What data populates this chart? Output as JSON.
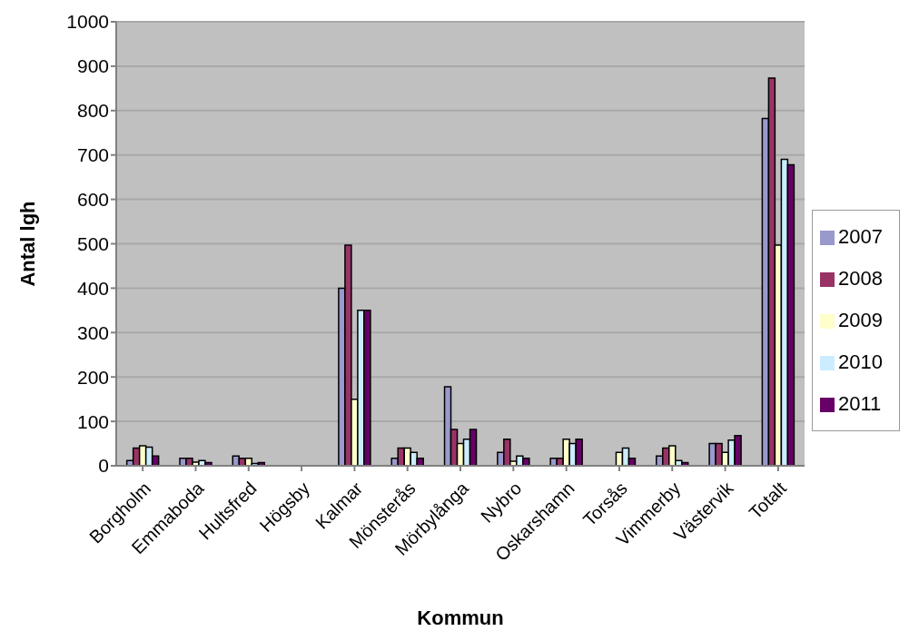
{
  "chart_data": {
    "type": "bar",
    "xlabel": "Kommun",
    "ylabel": "Antal lgh",
    "categories": [
      "Borgholm",
      "Emmaboda",
      "Hultsfred",
      "Högsby",
      "Kalmar",
      "Mönsterås",
      "Mörbylånga",
      "Nybro",
      "Oskarshamn",
      "Torsås",
      "Vimmerby",
      "Västervik",
      "Totalt"
    ],
    "series": [
      {
        "name": "2007",
        "color": "#9999cc",
        "values": [
          12,
          17,
          22,
          null,
          400,
          17,
          178,
          30,
          17,
          null,
          22,
          50,
          782
        ]
      },
      {
        "name": "2008",
        "color": "#993366",
        "values": [
          40,
          17,
          17,
          null,
          497,
          40,
          82,
          60,
          17,
          null,
          40,
          50,
          873
        ]
      },
      {
        "name": "2009",
        "color": "#ffffcc",
        "values": [
          45,
          8,
          17,
          null,
          150,
          40,
          50,
          10,
          60,
          30,
          45,
          30,
          497
        ]
      },
      {
        "name": "2010",
        "color": "#ccecff",
        "values": [
          42,
          12,
          5,
          null,
          350,
          30,
          60,
          22,
          50,
          40,
          12,
          58,
          690
        ]
      },
      {
        "name": "2011",
        "color": "#660066",
        "values": [
          22,
          7,
          7,
          null,
          350,
          17,
          82,
          17,
          60,
          17,
          7,
          68,
          678
        ]
      }
    ],
    "ylim": [
      0,
      1000
    ],
    "yticks": [
      0,
      100,
      200,
      300,
      400,
      500,
      600,
      700,
      800,
      900,
      1000
    ],
    "grid": "y",
    "legend": "right"
  }
}
